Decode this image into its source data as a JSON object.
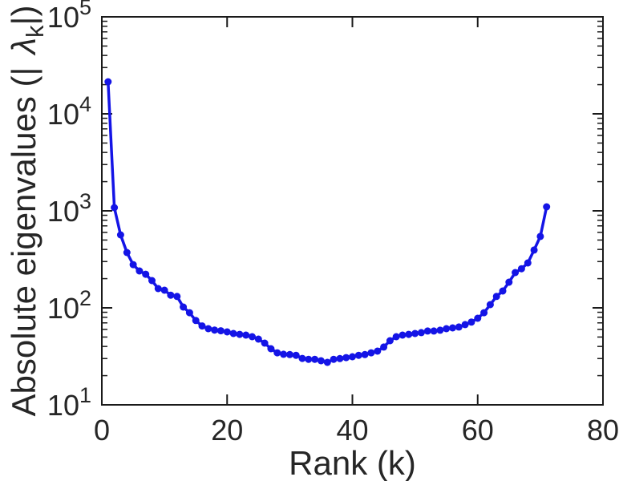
{
  "figure": {
    "background": "#FFFFFF",
    "axis_color": "#1A1A1A",
    "text_color": "#262626"
  },
  "chart_data": {
    "type": "line",
    "title": "",
    "xlabel": "Rank (k)",
    "ylabel": "Absolute eigenvalues (| λ_k|)",
    "ylabel_parts": {
      "prefix": "Absolute eigenvalues (|",
      "lambda": "λ",
      "subscript": "k",
      "suffix": "|)"
    },
    "x_axis": {
      "min": 0,
      "max": 80,
      "ticks": [
        0,
        20,
        40,
        60,
        80
      ],
      "minor_ticks": false
    },
    "y_axis": {
      "scale": "log",
      "base_label": "10",
      "tick_exponents": [
        1,
        2,
        3,
        4,
        5
      ],
      "min_exponent": 1,
      "max_exponent": 5,
      "minor_ticks": true
    },
    "grid": false,
    "legend": "none",
    "series": [
      {
        "name": "absolute-eigenvalues",
        "color": "#1414E6",
        "marker": "circle",
        "x": [
          1,
          2,
          3,
          4,
          5,
          6,
          7,
          8,
          9,
          10,
          11,
          12,
          13,
          14,
          15,
          16,
          17,
          18,
          19,
          20,
          21,
          22,
          23,
          24,
          25,
          26,
          27,
          28,
          29,
          30,
          31,
          32,
          33,
          34,
          35,
          36,
          37,
          38,
          39,
          40,
          41,
          42,
          43,
          44,
          45,
          46,
          47,
          48,
          49,
          50,
          51,
          52,
          53,
          54,
          55,
          56,
          57,
          58,
          59,
          60,
          61,
          62,
          63,
          64,
          65,
          66,
          67,
          68,
          69,
          70,
          71
        ],
        "y": [
          21400,
          1080,
          565,
          372,
          279,
          240,
          222,
          191,
          158,
          152,
          135,
          131,
          102,
          89,
          74,
          65,
          61,
          59,
          58,
          56.5,
          54.4,
          53.3,
          52.4,
          50.4,
          47.6,
          43.3,
          37.9,
          34.4,
          33.2,
          33,
          32.4,
          30.1,
          29.5,
          29.5,
          28.5,
          27.4,
          29.5,
          30,
          30.7,
          31.3,
          32.4,
          33,
          34.4,
          35.8,
          39.4,
          45.8,
          50.4,
          52.4,
          53.3,
          54.4,
          55.5,
          57.7,
          57.7,
          58.8,
          61,
          62.2,
          63.4,
          67.2,
          71.2,
          78.1,
          89,
          108,
          131,
          149,
          184,
          231,
          253,
          290,
          394,
          545,
          1100
        ]
      }
    ]
  }
}
